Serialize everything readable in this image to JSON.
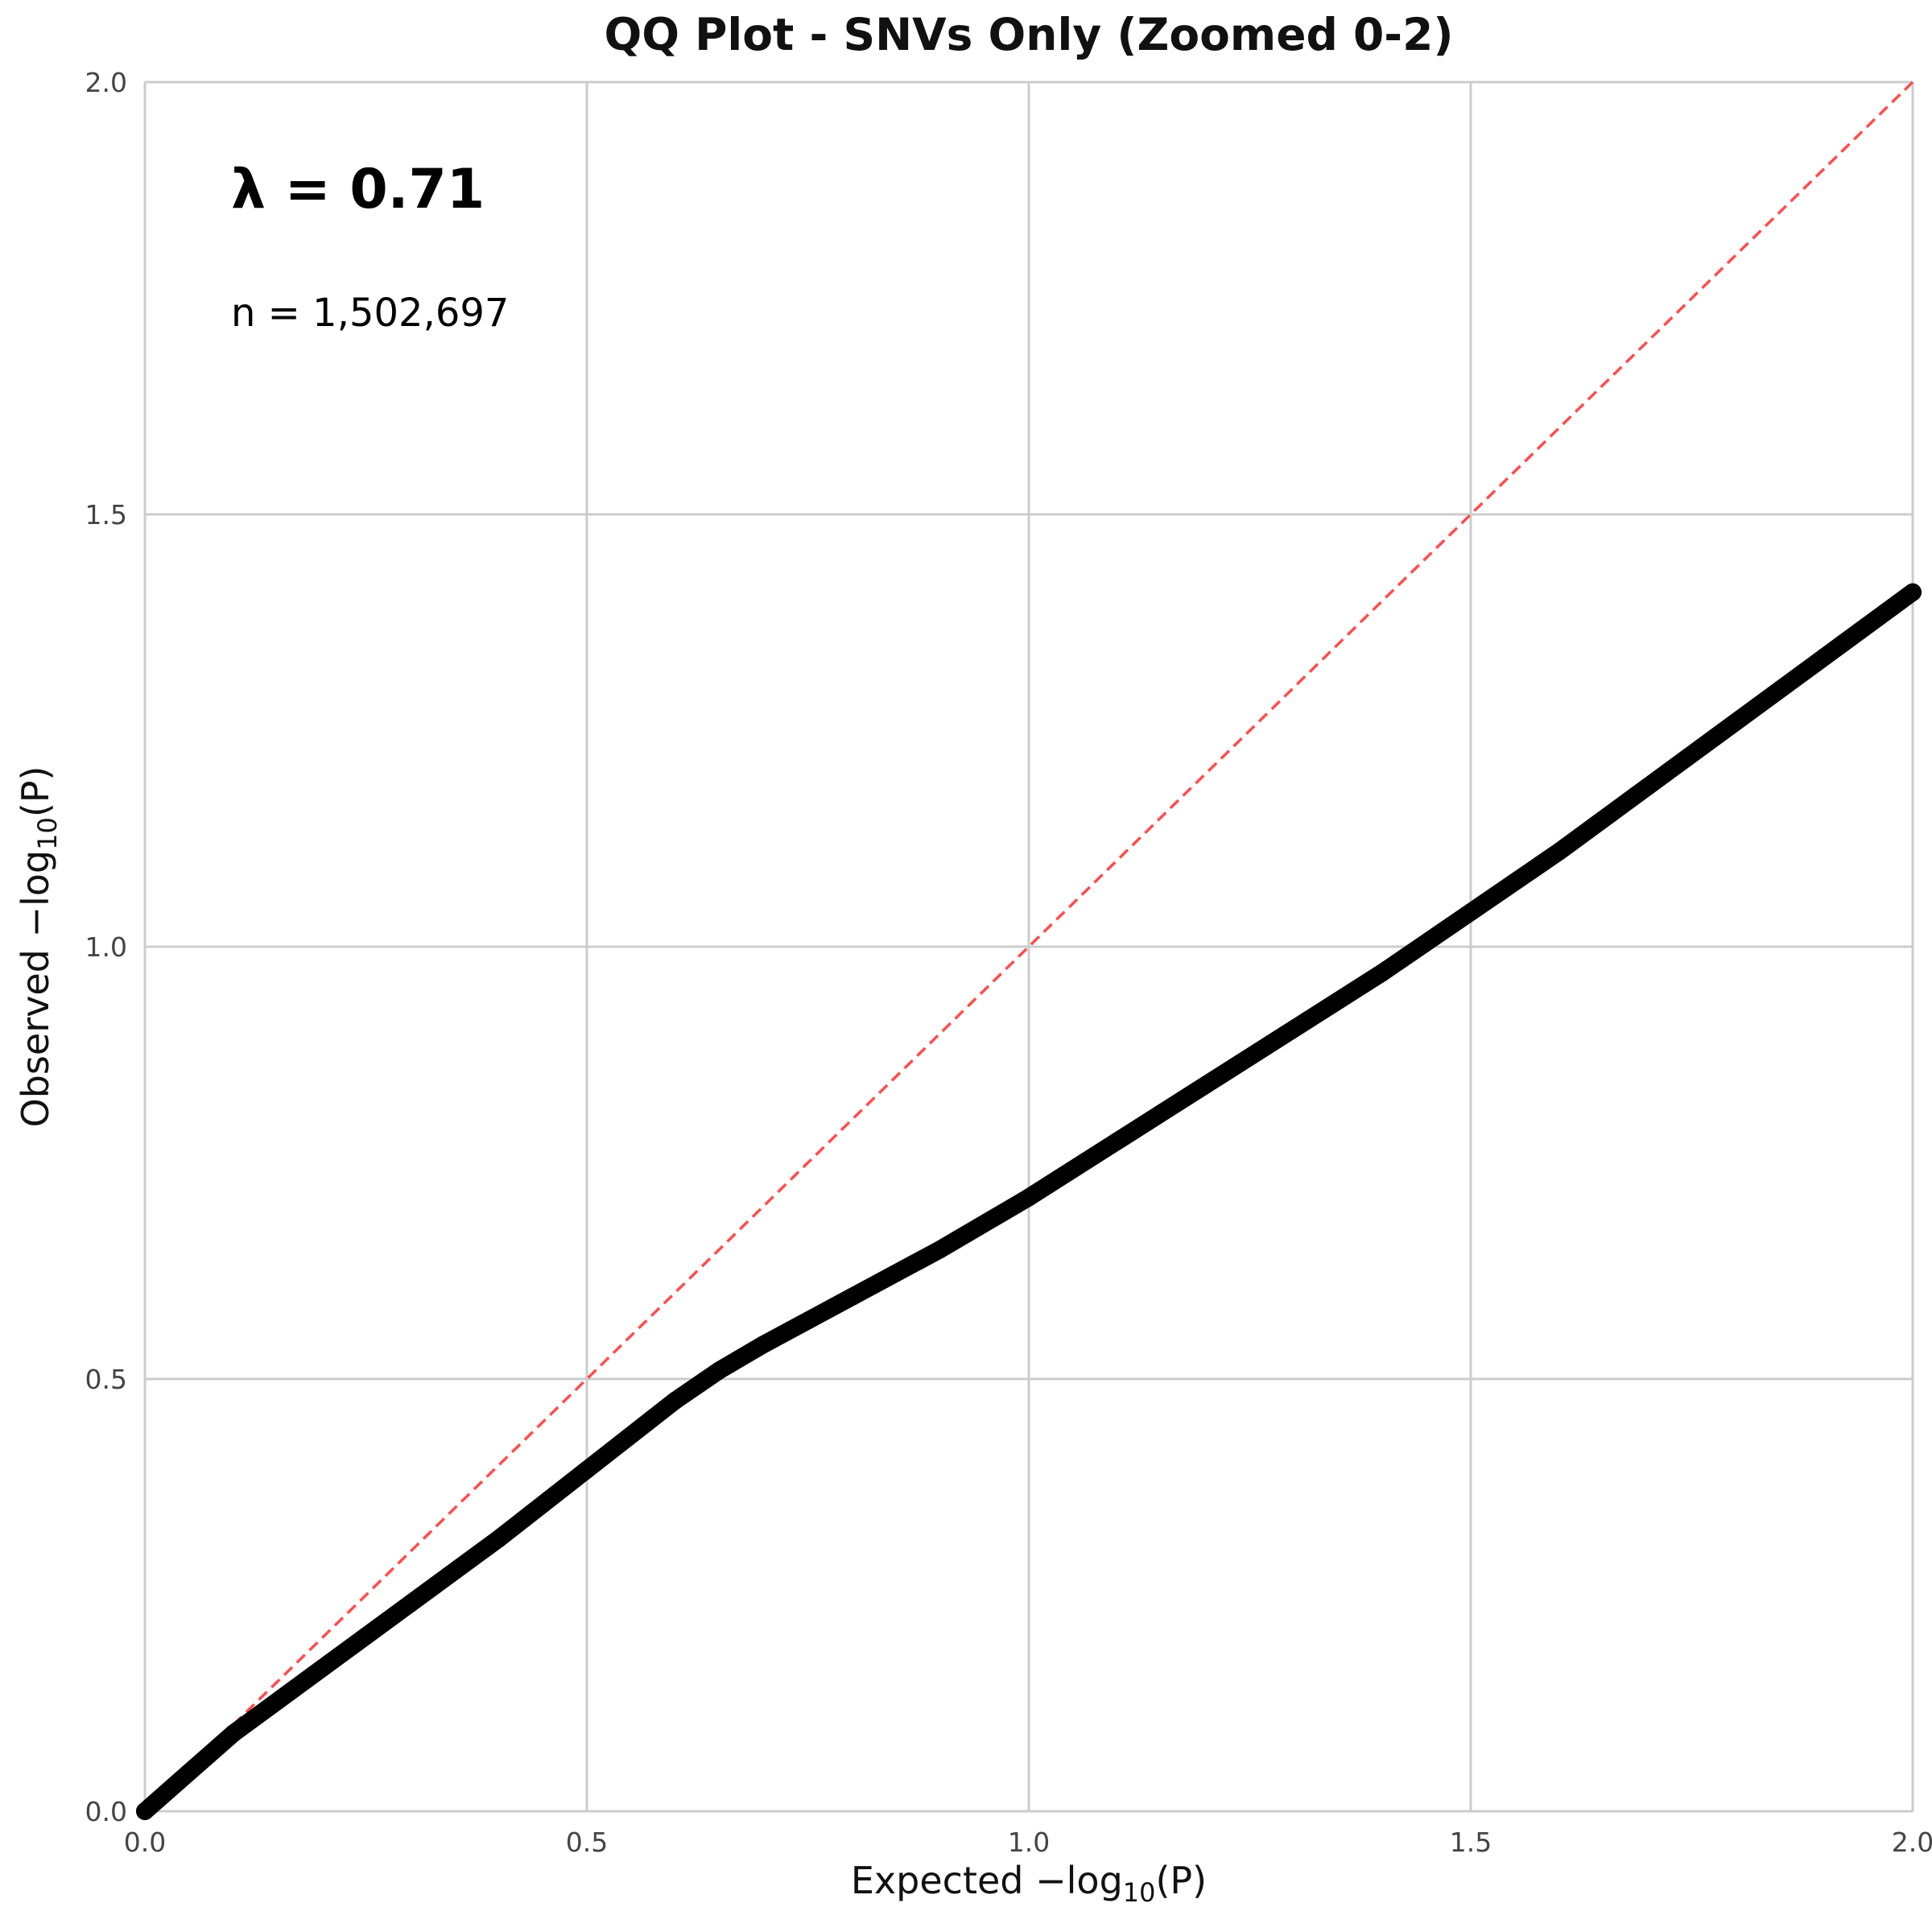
{
  "chart_data": {
    "type": "scatter",
    "title": "QQ Plot - SNVs Only (Zoomed 0-2)",
    "xlabel": {
      "prefix": "Expected −log",
      "sub": "10",
      "suffix": "(P)"
    },
    "ylabel": {
      "prefix": "Observed −log",
      "sub": "10",
      "suffix": "(P)"
    },
    "xlim": [
      0,
      2
    ],
    "ylim": [
      0,
      2
    ],
    "xticks": [
      0,
      0.5,
      1,
      1.5,
      2
    ],
    "yticks": [
      0,
      0.5,
      1,
      1.5,
      2
    ],
    "xtick_labels": [
      "0.0",
      "0.5",
      "1.0",
      "1.5",
      "2.0"
    ],
    "ytick_labels": [
      "0.0",
      "0.5",
      "1.0",
      "1.5",
      "2.0"
    ],
    "grid": true,
    "annotations": {
      "lambda": "λ = 0.71",
      "n": "n = 1,502,697"
    },
    "reference_line": {
      "x": [
        0,
        2
      ],
      "y": [
        0,
        2
      ],
      "color": "#ff4d4d",
      "style": "dashed"
    },
    "series": [
      {
        "color": "#000000",
        "x": [
          0.0,
          0.05,
          0.1,
          0.2,
          0.3,
          0.4,
          0.5,
          0.6,
          0.65,
          0.7,
          0.8,
          0.9,
          1.0,
          1.1,
          1.2,
          1.3,
          1.4,
          1.5,
          1.6,
          1.7,
          1.8,
          1.9,
          2.0
        ],
        "y": [
          0.0,
          0.045,
          0.09,
          0.165,
          0.24,
          0.315,
          0.395,
          0.475,
          0.51,
          0.54,
          0.595,
          0.65,
          0.71,
          0.775,
          0.84,
          0.905,
          0.97,
          1.04,
          1.11,
          1.185,
          1.26,
          1.335,
          1.41
        ]
      }
    ]
  }
}
